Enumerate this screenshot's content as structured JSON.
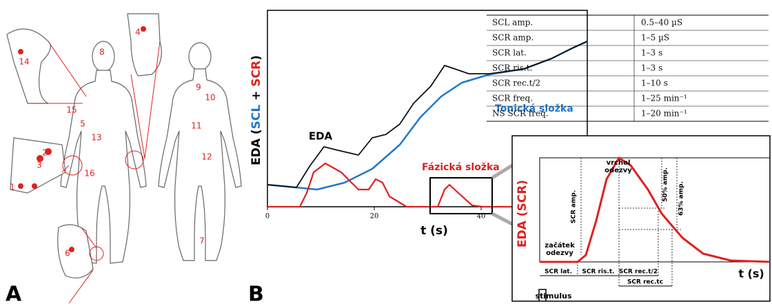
{
  "panel_a": {
    "label": "A",
    "site_numbers": [
      1,
      2,
      3,
      4,
      5,
      6,
      7,
      8,
      9,
      10,
      11,
      12,
      13,
      14,
      15,
      16
    ]
  },
  "panel_b": {
    "label": "B",
    "y_axis_label_parts": [
      "EDA (",
      "SCL",
      " + ",
      "SCR",
      ")"
    ],
    "x_axis_label": "t (s)",
    "x_ticks": [
      0,
      20,
      40
    ],
    "curve_labels": {
      "eda": "EDA",
      "tonic": "Tonická složka",
      "phasic": "Fázická složka"
    }
  },
  "table": {
    "rows": [
      [
        "SCL amp.",
        "0.5–40 µS"
      ],
      [
        "SCR amp.",
        "1–5 µS"
      ],
      [
        "SCR lat.",
        "1–3 s"
      ],
      [
        "SCR ris.t.",
        "1–3 s"
      ],
      [
        "SCR rec.t/2",
        "1–10 s"
      ],
      [
        "SCR freq.",
        "1–25 min⁻¹"
      ],
      [
        "NS SCR freq.",
        "1–20 min⁻¹"
      ]
    ]
  },
  "inset": {
    "peak_label": [
      "vrchol",
      "odezvy"
    ],
    "y_axis_label": "EDA (SCR)",
    "amp_label": "SCR amp.",
    "half_label": "50% amp.",
    "tc_label": "63% amp.",
    "onset_label": [
      "začátek",
      "odezvy"
    ],
    "intervals": [
      "SCR lat.",
      "SCR ris.t.",
      "SCR rec.t/2",
      "SCR rec.tc"
    ],
    "x_axis_label": "t (s)",
    "stimulus_label": "stimulus"
  }
}
